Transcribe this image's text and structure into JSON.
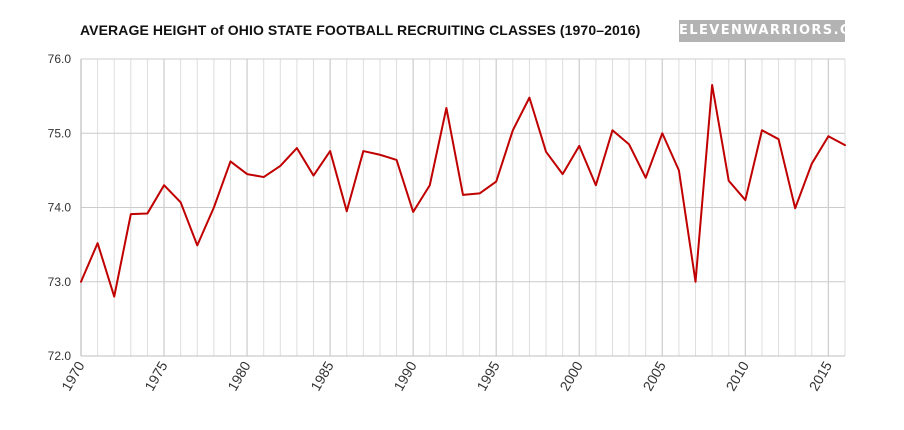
{
  "header": {
    "title": "AVERAGE HEIGHT of OHIO STATE FOOTBALL RECRUITING CLASSES (1970–2016)",
    "brand": "ELEVENWARRIORS.COM"
  },
  "colors": {
    "line": "#c00000",
    "grid": "#dedede",
    "axis": "#bfbfbf",
    "badge": "#b3b3b3"
  },
  "chart_data": {
    "type": "line",
    "title": "AVERAGE HEIGHT of OHIO STATE FOOTBALL RECRUITING CLASSES (1970–2016)",
    "xlabel": "",
    "ylabel": "",
    "xlim": [
      1970,
      2016
    ],
    "ylim": [
      72.0,
      76.0
    ],
    "yticks": [
      "72.0",
      "73.0",
      "74.0",
      "75.0",
      "76.0"
    ],
    "xticks": [
      "1970",
      "1975",
      "1980",
      "1985",
      "1990",
      "1995",
      "2000",
      "2005",
      "2010",
      "2015"
    ],
    "grid": true,
    "legend": "none",
    "x": [
      1970,
      1971,
      1972,
      1973,
      1974,
      1975,
      1976,
      1977,
      1978,
      1979,
      1980,
      1981,
      1982,
      1983,
      1984,
      1985,
      1986,
      1987,
      1988,
      1989,
      1990,
      1991,
      1992,
      1993,
      1994,
      1995,
      1996,
      1997,
      1998,
      1999,
      2000,
      2001,
      2002,
      2003,
      2004,
      2005,
      2006,
      2007,
      2008,
      2009,
      2010,
      2011,
      2012,
      2013,
      2014,
      2015,
      2016
    ],
    "series": [
      {
        "values": [
          73.0,
          73.52,
          72.8,
          73.91,
          73.92,
          74.3,
          74.07,
          73.49,
          74.0,
          74.62,
          74.45,
          74.41,
          74.56,
          74.8,
          74.43,
          74.76,
          73.95,
          74.76,
          74.71,
          74.64,
          73.94,
          74.3,
          75.34,
          74.17,
          74.19,
          74.35,
          75.04,
          75.48,
          74.75,
          74.45,
          74.83,
          74.3,
          75.04,
          74.85,
          74.4,
          75.0,
          74.5,
          73.0,
          75.65,
          74.36,
          74.1,
          75.04,
          74.92,
          73.99,
          74.59,
          74.96,
          74.84
        ]
      }
    ]
  }
}
